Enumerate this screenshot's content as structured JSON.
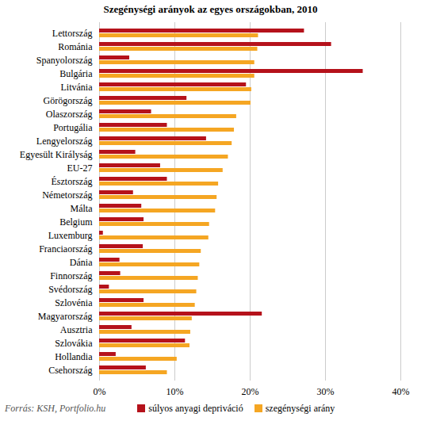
{
  "chart_data": {
    "type": "bar",
    "orientation": "horizontal",
    "title": "Szegénységi arányok az egyes országokban, 2010",
    "source": "Forrás: KSH, Portfolio.hu",
    "categories": [
      "Lettország",
      "Románia",
      "Spanyolország",
      "Bulgária",
      "Litvánia",
      "Görögország",
      "Olaszország",
      "Portugália",
      "Lengyelország",
      "Egyesült Királyság",
      "EU-27",
      "Észtország",
      "Németország",
      "Málta",
      "Belgium",
      "Luxemburg",
      "Franciaország",
      "Dánia",
      "Finnország",
      "Svédország",
      "Szlovénia",
      "Magyarország",
      "Ausztria",
      "Szlovákia",
      "Hollandia",
      "Csehország"
    ],
    "series": [
      {
        "name": "súlyos anyagi depriváció",
        "color": "#b5121b",
        "values": [
          27.2,
          30.8,
          4.0,
          35.0,
          19.5,
          11.6,
          6.9,
          9.0,
          14.2,
          4.8,
          8.1,
          9.0,
          4.5,
          5.6,
          5.9,
          0.5,
          5.8,
          2.7,
          2.8,
          1.3,
          5.9,
          21.6,
          4.3,
          11.4,
          2.2,
          6.2
        ]
      },
      {
        "name": "szegénységi arány",
        "color": "#f5a623",
        "values": [
          21.1,
          21.0,
          20.6,
          20.6,
          20.2,
          20.1,
          18.2,
          17.9,
          17.6,
          17.1,
          16.4,
          15.8,
          15.6,
          15.4,
          14.6,
          14.5,
          13.5,
          13.3,
          13.1,
          12.9,
          12.7,
          12.3,
          12.1,
          12.0,
          10.3,
          9.0
        ]
      }
    ],
    "xlim": [
      0,
      40
    ],
    "xticks": [
      {
        "value": 0,
        "label": "0%"
      },
      {
        "value": 10,
        "label": "10%"
      },
      {
        "value": 20,
        "label": "20%"
      },
      {
        "value": 30,
        "label": "30%"
      },
      {
        "value": 40,
        "label": "40%"
      }
    ],
    "grid": true,
    "legend": "bottom"
  }
}
